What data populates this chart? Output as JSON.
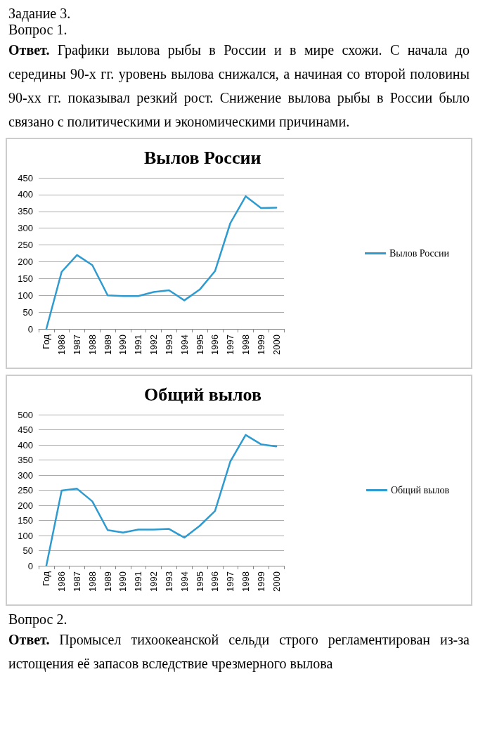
{
  "chart_data": [
    {
      "type": "other",
      "annotations": [
        "Задание 3.",
        "Вопрос 1.",
        "Ответ. Графики вылова рыбы в России и в мире схожи. С начала до середины 90-х гг. уровень вылова снижался, а начиная со второй половины 90-хх гг. показывал резкий рост. Снижение вылова рыбы в России было связано с политическими и экономическими причинами."
      ]
    },
    {
      "type": "line",
      "title": "Вылов России",
      "categories": [
        "Год",
        "1986",
        "1987",
        "1988",
        "1989",
        "1990",
        "1991",
        "1992",
        "1993",
        "1994",
        "1995",
        "1996",
        "1997",
        "1998",
        "1999",
        "2000"
      ],
      "series": [
        {
          "name": "Вылов России",
          "color": "#2e9bd0",
          "values": [
            0,
            170,
            220,
            190,
            100,
            98,
            98,
            110,
            115,
            85,
            117,
            172,
            315,
            395,
            360,
            361
          ]
        }
      ],
      "ylim": [
        0,
        450
      ],
      "yticks": [
        0,
        50,
        100,
        150,
        200,
        250,
        300,
        350,
        400,
        450
      ],
      "grid": "y",
      "legend": "right",
      "marker": "none",
      "line_style": "solid"
    },
    {
      "type": "line",
      "title": "Общий вылов",
      "categories": [
        "Год",
        "1986",
        "1987",
        "1988",
        "1989",
        "1990",
        "1991",
        "1992",
        "1993",
        "1994",
        "1995",
        "1996",
        "1997",
        "1998",
        "1999",
        "2000"
      ],
      "series": [
        {
          "name": "Общий вылов",
          "color": "#2e9bd0",
          "values": [
            0,
            249,
            255,
            213,
            118,
            110,
            120,
            120,
            122,
            93,
            132,
            181,
            345,
            433,
            402,
            395
          ]
        }
      ],
      "ylim": [
        0,
        500
      ],
      "yticks": [
        0,
        50,
        100,
        150,
        200,
        250,
        300,
        350,
        400,
        450,
        500
      ],
      "grid": "y",
      "legend": "right",
      "marker": "none",
      "line_style": "solid"
    },
    {
      "type": "other",
      "annotations": [
        "Вопрос 2.",
        "Ответ. Промысел тихоокеанской сельди строго регламентирован из-за истощения её запасов вследствие чрезмерного вылова"
      ]
    }
  ]
}
